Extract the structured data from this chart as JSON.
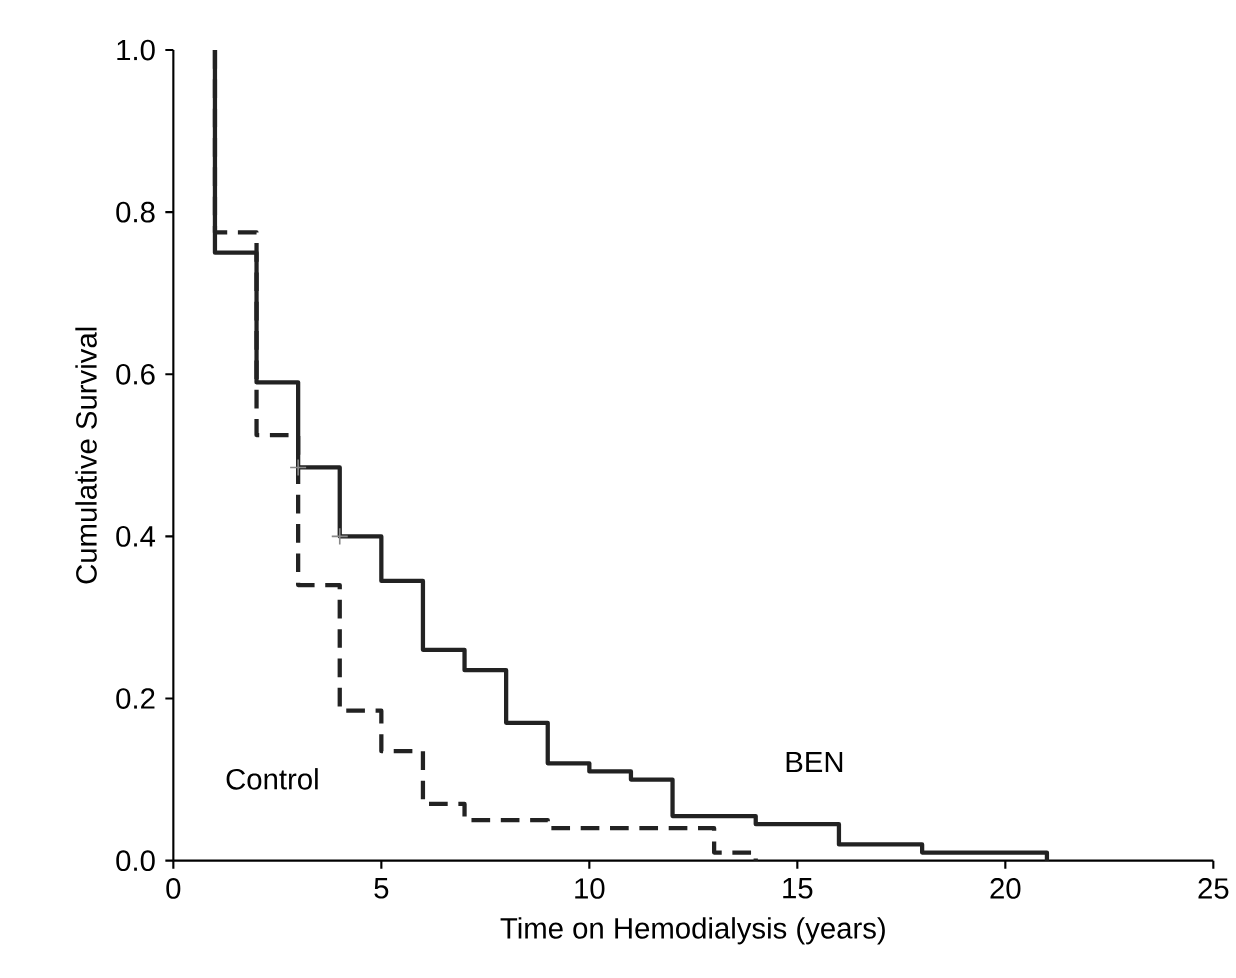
{
  "chart_data": {
    "type": "step",
    "xlabel": "Time on Hemodialysis (years)",
    "ylabel": "Cumulative Survival",
    "xlim": [
      0,
      25
    ],
    "ylim": [
      0,
      1
    ],
    "xticks": [
      0,
      5,
      10,
      15,
      20,
      25
    ],
    "yticks": [
      {
        "value": 0,
        "label": "0.0"
      },
      {
        "value": 0.2,
        "label": "0.2"
      },
      {
        "value": 0.4,
        "label": "0.4"
      },
      {
        "value": 0.6,
        "label": "0.6"
      },
      {
        "value": 0.8,
        "label": "0.8"
      },
      {
        "value": 1,
        "label": "1.0"
      }
    ],
    "grid": false,
    "legend": false,
    "series": [
      {
        "name": "BEN",
        "color": "#222222",
        "line_style": "solid",
        "x": [
          1,
          1,
          2,
          3,
          4,
          5,
          6,
          7,
          8,
          9,
          10,
          11,
          12,
          14,
          16,
          18,
          21
        ],
        "values": [
          1,
          0.75,
          0.59,
          0.485,
          0.4,
          0.345,
          0.26,
          0.235,
          0.17,
          0.12,
          0.11,
          0.1,
          0.055,
          0.045,
          0.02,
          0.01,
          0
        ]
      },
      {
        "name": "Control",
        "color": "#222222",
        "line_style": "dashed",
        "x": [
          1,
          1,
          2,
          3,
          4,
          5,
          6,
          7,
          9,
          13,
          14
        ],
        "values": [
          1,
          0.775,
          0.525,
          0.34,
          0.185,
          0.135,
          0.07,
          0.05,
          0.04,
          0.01,
          0
        ]
      },
      {
        "type": "scatter",
        "marker": "cross",
        "color": "#888888",
        "x": [
          3,
          4
        ],
        "values": [
          0.485,
          0.4
        ]
      }
    ]
  }
}
